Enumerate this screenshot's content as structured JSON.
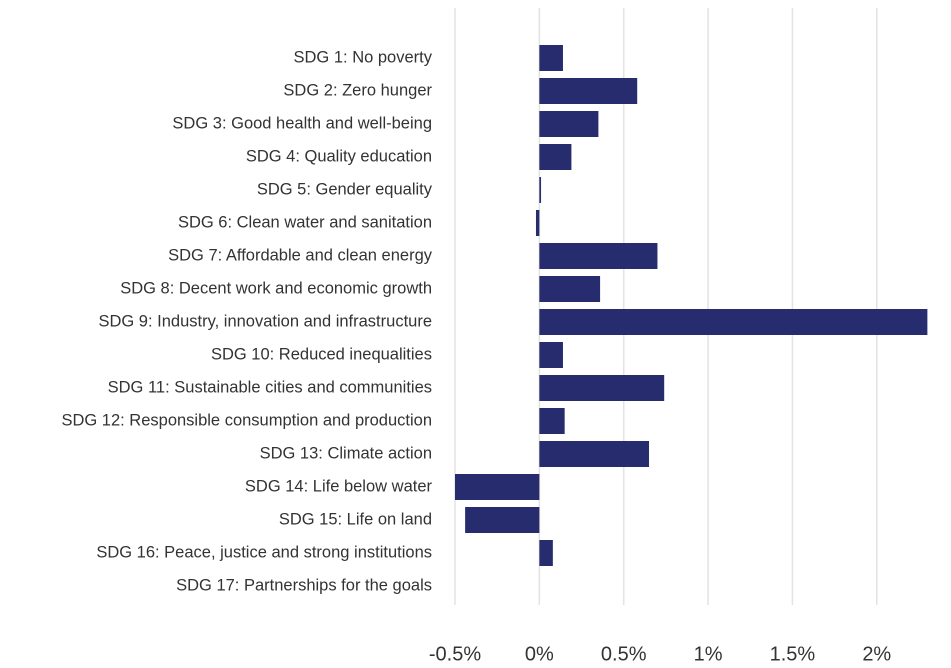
{
  "chart_data": {
    "type": "hbar",
    "categories": [
      "SDG 1: No poverty",
      "SDG 2: Zero hunger",
      "SDG 3: Good health and well-being",
      "SDG 4: Quality education",
      "SDG 5: Gender equality",
      "SDG 6: Clean water and sanitation",
      "SDG 7: Affordable and clean energy",
      "SDG 8: Decent work and economic growth",
      "SDG 9: Industry, innovation and infrastructure",
      "SDG 10: Reduced inequalities",
      "SDG 11: Sustainable cities and communities",
      "SDG 12: Responsible consumption and production",
      "SDG 13: Climate action",
      "SDG 14: Life below water",
      "SDG 15: Life on land",
      "SDG 16: Peace, justice and strong institutions",
      "SDG 17: Partnerships for the goals"
    ],
    "values": [
      0.14,
      0.58,
      0.35,
      0.19,
      0.01,
      -0.02,
      0.7,
      0.36,
      2.3,
      0.14,
      0.74,
      0.15,
      0.65,
      -0.5,
      -0.44,
      0.08,
      0
    ],
    "color": "#272c6e",
    "xlim": [
      -0.5,
      2.44
    ],
    "xticks": [
      {
        "value": -0.5,
        "label": "-0.5%"
      },
      {
        "value": 0,
        "label": "0%"
      },
      {
        "value": 0.5,
        "label": "0.5%"
      },
      {
        "value": 1,
        "label": "1%"
      },
      {
        "value": 1.5,
        "label": "1.5%"
      },
      {
        "value": 2,
        "label": "2%"
      }
    ],
    "grid": true
  }
}
